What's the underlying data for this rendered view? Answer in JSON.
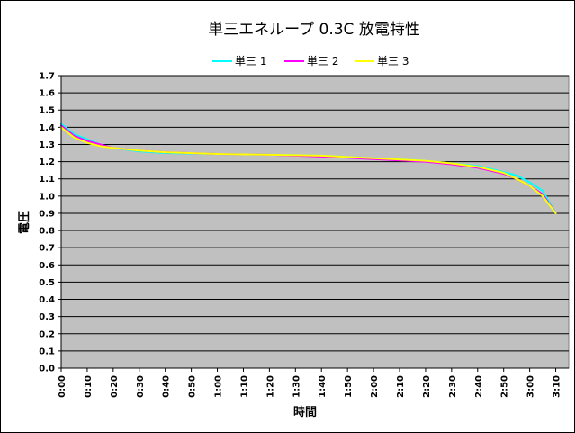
{
  "chart_data": {
    "type": "line",
    "title": "単三エネループ 0.3C 放電特性",
    "xlabel": "時間",
    "ylabel": "電圧",
    "ylim": [
      0.0,
      1.7
    ],
    "yticks": [
      "0.0",
      "0.1",
      "0.2",
      "0.3",
      "0.4",
      "0.5",
      "0.6",
      "0.7",
      "0.8",
      "0.9",
      "1.0",
      "1.1",
      "1.2",
      "1.3",
      "1.4",
      "1.5",
      "1.6",
      "1.7"
    ],
    "x_ticks": [
      "0:00",
      "0:10",
      "0:20",
      "0:30",
      "0:40",
      "0:50",
      "1:00",
      "1:10",
      "1:20",
      "1:30",
      "1:40",
      "1:50",
      "2:00",
      "2:10",
      "2:20",
      "2:30",
      "2:40",
      "2:50",
      "3:00",
      "3:10"
    ],
    "x_unit": "minutes",
    "xlim": [
      0,
      195
    ],
    "grid": true,
    "legend_position": "top",
    "plot_background": "#c0c0c0",
    "series": [
      {
        "name": "単三 1",
        "color": "#00ffff",
        "x": [
          0,
          5,
          10,
          15,
          20,
          30,
          40,
          60,
          80,
          100,
          120,
          140,
          150,
          160,
          170,
          175,
          180,
          185,
          190
        ],
        "values": [
          1.42,
          1.36,
          1.33,
          1.3,
          1.28,
          1.26,
          1.25,
          1.245,
          1.24,
          1.235,
          1.22,
          1.205,
          1.19,
          1.175,
          1.14,
          1.12,
          1.08,
          1.03,
          0.9
        ]
      },
      {
        "name": "単三 2",
        "color": "#ff00ff",
        "x": [
          0,
          5,
          10,
          15,
          20,
          30,
          40,
          60,
          80,
          100,
          120,
          140,
          150,
          160,
          170,
          175,
          180,
          185,
          190
        ],
        "values": [
          1.41,
          1.35,
          1.32,
          1.3,
          1.28,
          1.265,
          1.255,
          1.245,
          1.24,
          1.23,
          1.215,
          1.2,
          1.185,
          1.165,
          1.13,
          1.1,
          1.06,
          1.01,
          0.9
        ]
      },
      {
        "name": "単三 3",
        "color": "#ffff00",
        "x": [
          0,
          5,
          10,
          15,
          20,
          30,
          40,
          60,
          80,
          100,
          120,
          140,
          150,
          160,
          170,
          175,
          180,
          185,
          190
        ],
        "values": [
          1.4,
          1.34,
          1.31,
          1.29,
          1.28,
          1.265,
          1.255,
          1.245,
          1.24,
          1.235,
          1.22,
          1.205,
          1.19,
          1.17,
          1.135,
          1.1,
          1.06,
          1.0,
          0.9
        ]
      }
    ]
  }
}
